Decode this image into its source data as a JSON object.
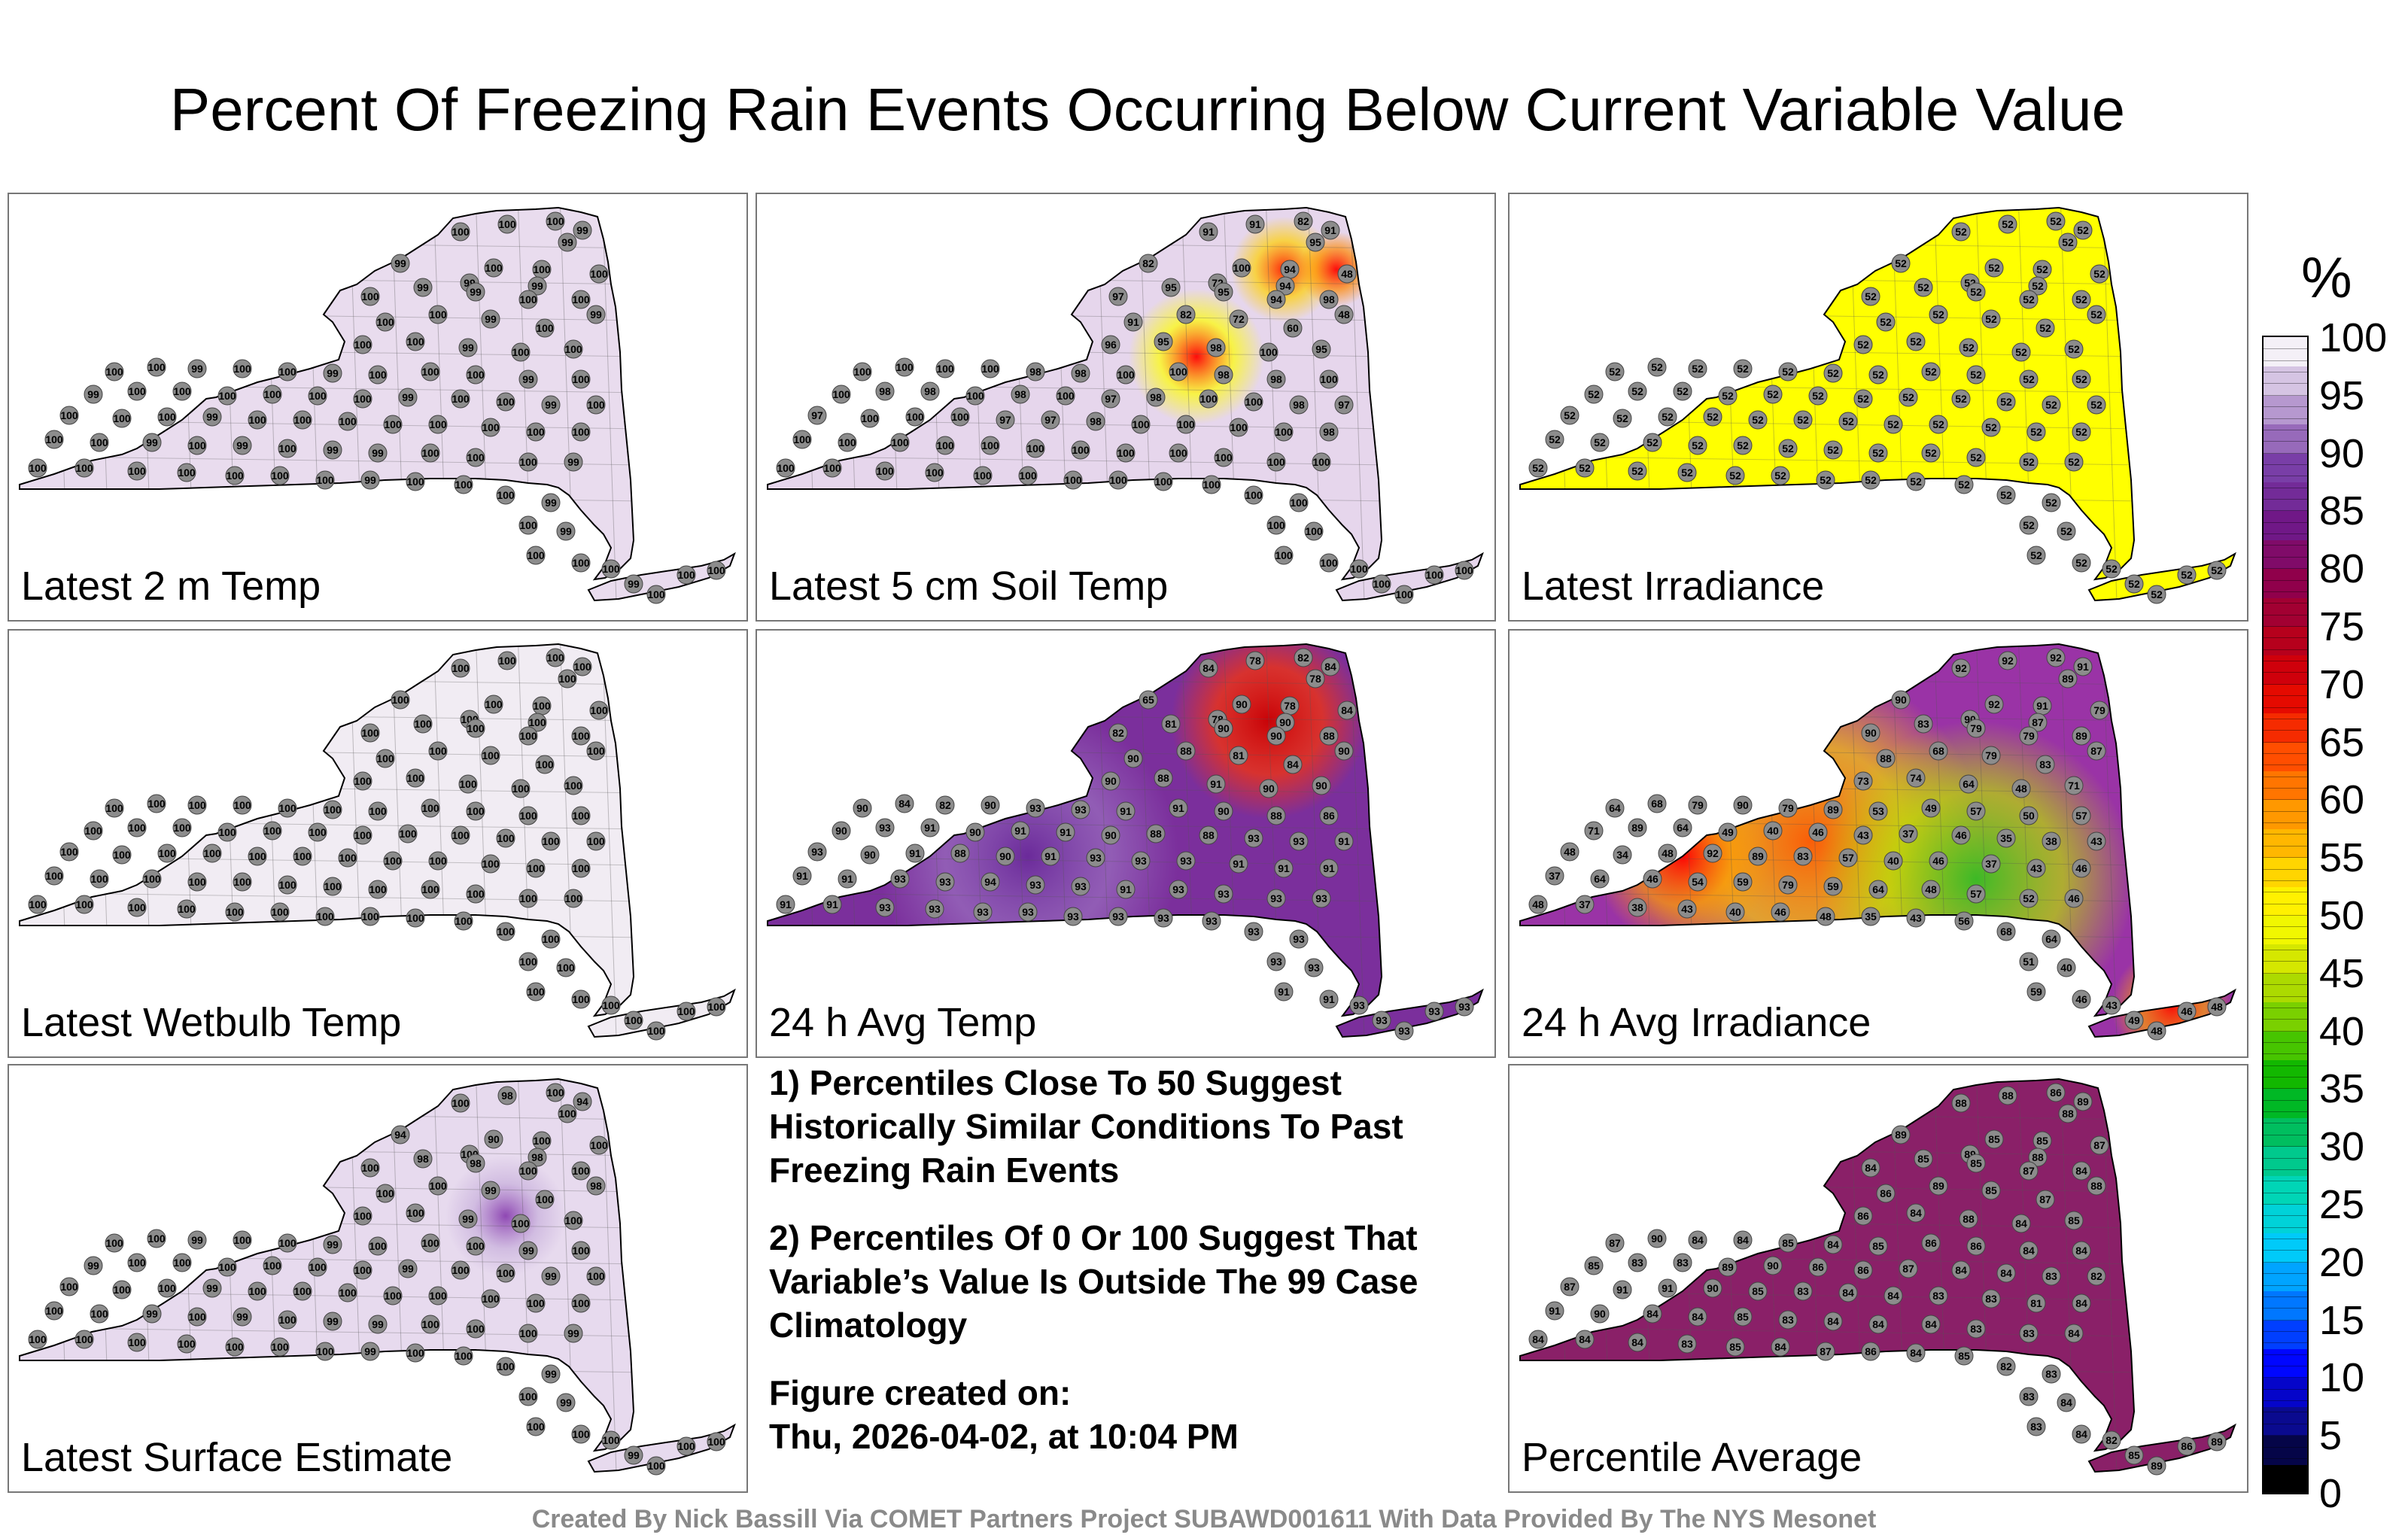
{
  "title": "Percent Of Freezing Rain Events Occurring Below Current Variable Value",
  "panels": [
    {
      "label": "Latest 2 m Temp",
      "fill": "#e9dcee",
      "values": [
        "100",
        "100",
        "100",
        "99",
        "99",
        "99",
        "100",
        "100",
        "99",
        "99",
        "100",
        "100",
        "99",
        "99",
        "100",
        "100",
        "99",
        "100",
        "100",
        "99",
        "100",
        "100",
        "100",
        "99",
        "100",
        "100",
        "100",
        "100",
        "99",
        "100",
        "100",
        "99",
        "100",
        "100",
        "100",
        "99",
        "100",
        "99",
        "100",
        "100",
        "100",
        "100",
        "100",
        "100",
        "99",
        "100",
        "100",
        "99",
        "100",
        "100",
        "100",
        "100",
        "99",
        "100",
        "100",
        "100",
        "100",
        "100",
        "100",
        "100",
        "100",
        "100",
        "100",
        "99",
        "100",
        "99",
        "100",
        "99",
        "99",
        "100",
        "100",
        "100",
        "99",
        "100",
        "100",
        "100",
        "100",
        "100",
        "100",
        "100",
        "99",
        "100",
        "100",
        "100",
        "99",
        "100",
        "99",
        "100",
        "100",
        "100",
        "99",
        "100",
        "100",
        "100"
      ]
    },
    {
      "label": "Latest 5 cm Soil Temp",
      "fill": "#e6d6ec",
      "values": [
        "91",
        "91",
        "82",
        "91",
        "95",
        "82",
        "100",
        "94",
        "72",
        "94",
        "48",
        "97",
        "95",
        "95",
        "94",
        "98",
        "48",
        "91",
        "82",
        "72",
        "60",
        "96",
        "95",
        "98",
        "100",
        "95",
        "100",
        "100",
        "100",
        "100",
        "98",
        "98",
        "100",
        "100",
        "98",
        "98",
        "100",
        "100",
        "98",
        "98",
        "100",
        "98",
        "100",
        "97",
        "98",
        "100",
        "100",
        "98",
        "97",
        "97",
        "100",
        "100",
        "100",
        "97",
        "97",
        "98",
        "100",
        "100",
        "100",
        "100",
        "98",
        "100",
        "100",
        "100",
        "100",
        "100",
        "100",
        "100",
        "100",
        "100",
        "100",
        "100",
        "100",
        "100",
        "100",
        "100",
        "100",
        "100",
        "100",
        "100",
        "100",
        "100",
        "100",
        "100",
        "100",
        "100",
        "100",
        "100",
        "100",
        "100",
        "100",
        "100",
        "100",
        "100"
      ]
    },
    {
      "label": "Latest Irradiance",
      "fill": "#ffff00",
      "values": [
        "52",
        "52",
        "52",
        "52",
        "52",
        "52",
        "52",
        "52",
        "52",
        "52",
        "52",
        "52",
        "52",
        "52",
        "52",
        "52",
        "52",
        "52",
        "52",
        "52",
        "52",
        "52",
        "52",
        "52",
        "52",
        "52",
        "52",
        "52",
        "52",
        "52",
        "52",
        "52",
        "52",
        "52",
        "52",
        "52",
        "52",
        "52",
        "52",
        "52",
        "52",
        "52",
        "52",
        "52",
        "52",
        "52",
        "52",
        "52",
        "52",
        "52",
        "52",
        "52",
        "52",
        "52",
        "52",
        "52",
        "52",
        "52",
        "52",
        "52",
        "52",
        "52",
        "52",
        "52",
        "52",
        "52",
        "52",
        "52",
        "52",
        "52",
        "52",
        "52",
        "52",
        "52",
        "52",
        "52",
        "52",
        "52",
        "52",
        "52",
        "52",
        "52",
        "52",
        "52",
        "52",
        "52",
        "52",
        "52",
        "52",
        "52",
        "52",
        "52",
        "52",
        "52"
      ]
    },
    {
      "label": "Latest Wetbulb Temp",
      "fill": "#f1ecf3",
      "values": [
        "100",
        "100",
        "100",
        "100",
        "100",
        "100",
        "100",
        "100",
        "100",
        "100",
        "100",
        "100",
        "100",
        "100",
        "100",
        "100",
        "100",
        "100",
        "100",
        "100",
        "100",
        "100",
        "100",
        "100",
        "100",
        "100",
        "100",
        "100",
        "100",
        "100",
        "100",
        "100",
        "100",
        "100",
        "100",
        "100",
        "100",
        "100",
        "100",
        "100",
        "100",
        "100",
        "100",
        "100",
        "100",
        "100",
        "100",
        "100",
        "100",
        "100",
        "100",
        "100",
        "100",
        "100",
        "100",
        "100",
        "100",
        "100",
        "100",
        "100",
        "100",
        "100",
        "100",
        "100",
        "100",
        "100",
        "100",
        "100",
        "100",
        "100",
        "100",
        "100",
        "100",
        "100",
        "100",
        "100",
        "100",
        "100",
        "100",
        "100",
        "100",
        "100",
        "100",
        "100",
        "100",
        "100",
        "100",
        "100",
        "100",
        "100",
        "100",
        "100",
        "100",
        "100"
      ]
    },
    {
      "label": "24 h Avg Temp",
      "fill": "#7b2f9c",
      "values": [
        "84",
        "78",
        "82",
        "84",
        "78",
        "65",
        "90",
        "78",
        "78",
        "90",
        "84",
        "82",
        "81",
        "90",
        "90",
        "88",
        "90",
        "90",
        "88",
        "81",
        "84",
        "90",
        "88",
        "91",
        "90",
        "90",
        "90",
        "84",
        "82",
        "90",
        "93",
        "93",
        "91",
        "91",
        "90",
        "88",
        "86",
        "90",
        "93",
        "91",
        "90",
        "91",
        "91",
        "90",
        "88",
        "88",
        "93",
        "93",
        "91",
        "93",
        "90",
        "91",
        "88",
        "90",
        "91",
        "93",
        "93",
        "93",
        "91",
        "91",
        "91",
        "91",
        "91",
        "93",
        "93",
        "94",
        "93",
        "93",
        "91",
        "93",
        "93",
        "93",
        "93",
        "91",
        "91",
        "93",
        "93",
        "93",
        "93",
        "93",
        "93",
        "93",
        "93",
        "93",
        "93",
        "93",
        "93",
        "91",
        "91",
        "93",
        "93",
        "93",
        "93",
        "93"
      ]
    },
    {
      "label": "24 h Avg Irradiance",
      "fill": "#9a33a6",
      "values": [
        "92",
        "92",
        "92",
        "91",
        "89",
        "90",
        "92",
        "91",
        "90",
        "87",
        "79",
        "90",
        "83",
        "79",
        "79",
        "89",
        "87",
        "88",
        "68",
        "79",
        "83",
        "73",
        "74",
        "64",
        "48",
        "71",
        "64",
        "68",
        "79",
        "90",
        "79",
        "89",
        "53",
        "49",
        "57",
        "50",
        "57",
        "71",
        "89",
        "64",
        "49",
        "40",
        "46",
        "43",
        "37",
        "46",
        "35",
        "38",
        "43",
        "48",
        "34",
        "48",
        "92",
        "89",
        "83",
        "57",
        "40",
        "46",
        "37",
        "43",
        "46",
        "37",
        "64",
        "46",
        "54",
        "59",
        "79",
        "59",
        "64",
        "48",
        "57",
        "52",
        "46",
        "48",
        "37",
        "38",
        "43",
        "40",
        "46",
        "48",
        "35",
        "43",
        "56",
        "68",
        "64",
        "51",
        "40",
        "59",
        "46",
        "43",
        "49",
        "46",
        "48",
        "48"
      ]
    },
    {
      "label": "Latest Surface Estimate",
      "fill": "#e7daee",
      "values": [
        "100",
        "98",
        "100",
        "94",
        "100",
        "94",
        "90",
        "100",
        "100",
        "98",
        "100",
        "100",
        "98",
        "98",
        "100",
        "100",
        "98",
        "100",
        "100",
        "99",
        "100",
        "100",
        "100",
        "99",
        "100",
        "100",
        "100",
        "100",
        "99",
        "100",
        "100",
        "99",
        "100",
        "100",
        "100",
        "99",
        "100",
        "99",
        "100",
        "100",
        "100",
        "100",
        "100",
        "100",
        "99",
        "100",
        "100",
        "99",
        "100",
        "100",
        "100",
        "100",
        "99",
        "100",
        "100",
        "100",
        "100",
        "100",
        "100",
        "100",
        "100",
        "100",
        "100",
        "99",
        "100",
        "99",
        "100",
        "99",
        "99",
        "100",
        "100",
        "100",
        "99",
        "100",
        "100",
        "100",
        "100",
        "100",
        "100",
        "100",
        "99",
        "100",
        "100",
        "100",
        "99",
        "100",
        "99",
        "100",
        "100",
        "100",
        "99",
        "100",
        "100",
        "100"
      ]
    },
    {
      "label": "Percentile Average",
      "fill": "#8a2068",
      "values": [
        "88",
        "88",
        "86",
        "89",
        "88",
        "89",
        "85",
        "85",
        "89",
        "88",
        "87",
        "84",
        "85",
        "85",
        "87",
        "84",
        "88",
        "86",
        "89",
        "85",
        "87",
        "86",
        "84",
        "88",
        "84",
        "85",
        "87",
        "90",
        "84",
        "84",
        "85",
        "84",
        "85",
        "86",
        "86",
        "84",
        "84",
        "85",
        "83",
        "83",
        "89",
        "90",
        "86",
        "86",
        "87",
        "84",
        "84",
        "83",
        "82",
        "87",
        "91",
        "91",
        "90",
        "85",
        "83",
        "84",
        "84",
        "83",
        "83",
        "81",
        "84",
        "91",
        "90",
        "84",
        "84",
        "85",
        "83",
        "84",
        "84",
        "84",
        "83",
        "83",
        "84",
        "84",
        "84",
        "84",
        "83",
        "85",
        "84",
        "87",
        "86",
        "84",
        "85",
        "82",
        "83",
        "83",
        "84",
        "83",
        "84",
        "82",
        "85",
        "86",
        "89",
        "89"
      ]
    }
  ],
  "notes": {
    "note1": "1) Percentiles Close To 50 Suggest Historically Similar Conditions To Past Freezing Rain Events",
    "note2": "2) Percentiles Of 0 Or 100 Suggest That Variable’s Value Is Outside The 99 Case Climatology",
    "created_label": "Figure created on:",
    "created_date": "Thu, 2026-04-02, at 10:04 PM"
  },
  "footer": "Created By Nick Bassill Via COMET Partners Project SUBAWD001611 With Data Provided By The NYS Mesonet",
  "colorbar": {
    "unit": "%",
    "ticks": [
      "100",
      "95",
      "90",
      "85",
      "80",
      "75",
      "70",
      "65",
      "60",
      "55",
      "50",
      "45",
      "40",
      "35",
      "30",
      "25",
      "20",
      "15",
      "10",
      "5",
      "0"
    ],
    "stops": [
      "#000000",
      "#0a0a8c",
      "#0000ff",
      "#0070ff",
      "#00c8ff",
      "#00d8c0",
      "#00c070",
      "#00b400",
      "#66cc00",
      "#c8e000",
      "#ffff00",
      "#ffc800",
      "#ff8c00",
      "#ff4000",
      "#e00000",
      "#b00020",
      "#8c0050",
      "#6e1a8c",
      "#7a40a8",
      "#b89ad0",
      "#f4f0f7"
    ]
  },
  "chart_data": {
    "type": "map",
    "title": "Percent Of Freezing Rain Events Occurring Below Current Variable Value",
    "colorbar_range": [
      0,
      100
    ],
    "colorbar_label": "%",
    "panels": [
      "Latest 2 m Temp",
      "Latest 5 cm Soil Temp",
      "Latest Irradiance",
      "Latest Wetbulb Temp",
      "24 h Avg Temp",
      "24 h Avg Irradiance",
      "Latest Surface Estimate",
      "Percentile Average"
    ]
  }
}
